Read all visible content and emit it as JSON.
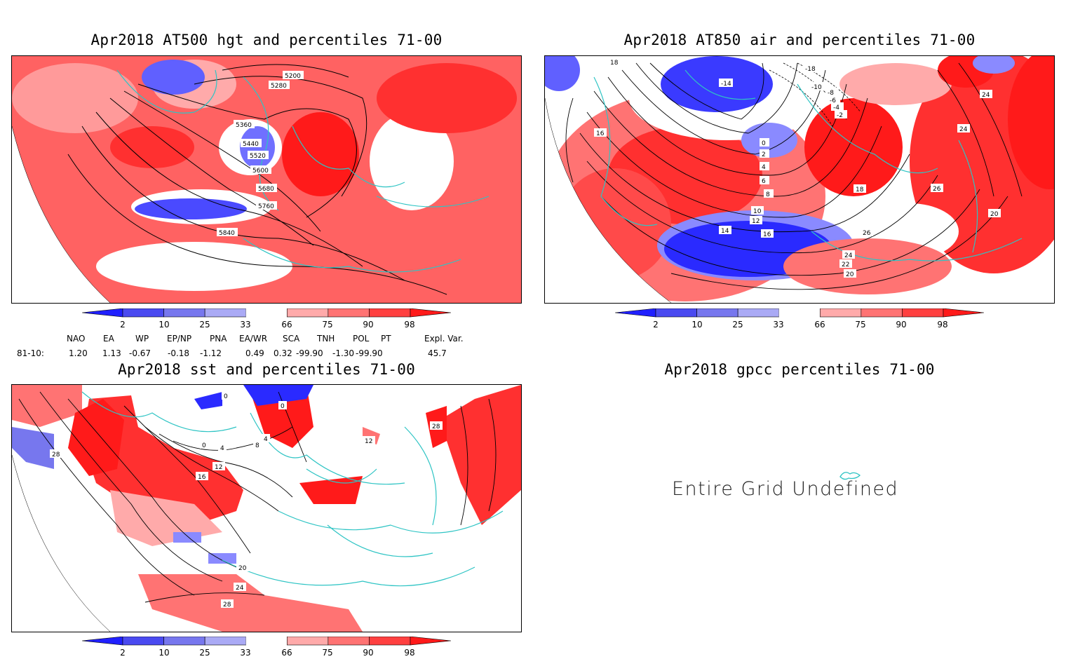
{
  "panels": [
    {
      "id": "hgt",
      "title": "Apr2018 AT500 hgt and percentiles 71-00",
      "contour_labels": [
        "5200",
        "5280",
        "5360",
        "5440",
        "5520",
        "5600",
        "5680",
        "5760",
        "5840"
      ]
    },
    {
      "id": "air",
      "title": "Apr2018 AT850 air and percentiles 71-00",
      "contour_labels": [
        "-18",
        "-14",
        "-10",
        "-8",
        "-6",
        "-4",
        "-2",
        "0",
        "2",
        "4",
        "6",
        "8",
        "10",
        "12",
        "14",
        "16",
        "16",
        "18",
        "18",
        "20",
        "20",
        "22",
        "24",
        "24",
        "24",
        "26",
        "26"
      ]
    },
    {
      "id": "sst",
      "title": "Apr2018 sst and percentiles 71-00",
      "contour_labels": [
        "0",
        "0",
        "0",
        "4",
        "4",
        "8",
        "12",
        "12",
        "16",
        "20",
        "24",
        "28",
        "28",
        "28"
      ]
    },
    {
      "id": "gpcc",
      "title": "Apr2018 gpcc percentiles 71-00",
      "message": "Entire Grid Undefined"
    }
  ],
  "colorbar": {
    "labels": [
      "2",
      "10",
      "25",
      "33",
      "66",
      "75",
      "90",
      "98"
    ],
    "colors": {
      "blue_dark": "#2020ff",
      "blue_mid": "#4a4af0",
      "blue_light": "#7777ee",
      "blue_pale": "#aaaaf5",
      "red_pale": "#ffaaaa",
      "red_light": "#ff7373",
      "red_mid": "#ff4040",
      "red_dark": "#ff1a1a"
    }
  },
  "indices": {
    "headers": [
      "NAO",
      "EA",
      "WP",
      "EP/NP",
      "PNA",
      "EA/WR",
      "SCA",
      "TNH",
      "POL",
      "PT",
      "Expl. Var."
    ],
    "row_label": "81-10:",
    "values": [
      "1.20",
      "1.13",
      "-0.67",
      "-0.18",
      "-1.12",
      "0.49",
      "0.32",
      "-99.90",
      "-1.30",
      "-99.90",
      "45.7"
    ]
  },
  "colors": {
    "coast": "#2ec4c4",
    "contour": "#000000",
    "red": "#ff2a2a",
    "blue": "#2a2aff"
  }
}
